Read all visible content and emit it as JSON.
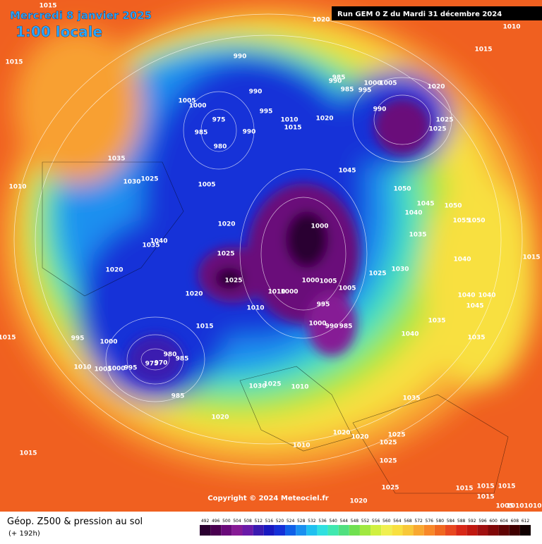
{
  "header": {
    "date": "Mercredi 8 janvier 2025",
    "time": "1:00 locale",
    "run": "Run GEM 0 Z du Mardi 31 décembre 2024"
  },
  "copyright": "Copyright © 2024 Meteociel.fr",
  "footer": {
    "title": "Géop. Z500 & pression au sol",
    "lead": "(+ 192h)"
  },
  "isobar_labels": [
    1015,
    1020,
    1010,
    1015,
    1015,
    990,
    985,
    990,
    1000,
    1005,
    985,
    995,
    1020,
    990,
    1005,
    1000,
    995,
    975,
    990,
    1025,
    1010,
    1020,
    990,
    985,
    1015,
    1025,
    980,
    1035,
    1045,
    1030,
    1025,
    1005,
    1010,
    1050,
    1045,
    1050,
    1040,
    1055,
    1050,
    1020,
    1000,
    1035,
    1040,
    1035,
    1015,
    1025,
    1040,
    1020,
    1025,
    1030,
    1025,
    1000,
    1005,
    1005,
    1020,
    1010,
    1000,
    1040,
    1040,
    995,
    1010,
    1045,
    1035,
    1000,
    990,
    985,
    1040,
    995,
    1000,
    1015,
    1015,
    1035,
    980,
    985,
    975,
    970,
    1010,
    1005,
    1000,
    995,
    1030,
    1025,
    1010,
    985,
    1035,
    1020,
    1015,
    1020,
    1020,
    1025,
    1025,
    1010,
    1025,
    1025,
    1015,
    1015,
    1015,
    1020,
    1015,
    1010,
    1010,
    1005
  ],
  "scale": {
    "values": [
      492,
      496,
      500,
      504,
      508,
      512,
      516,
      520,
      524,
      528,
      532,
      536,
      540,
      544,
      548,
      552,
      556,
      560,
      564,
      568,
      572,
      576,
      580,
      584,
      588,
      592,
      596,
      600,
      604,
      608,
      612
    ],
    "colors": [
      "#2a0030",
      "#4a0050",
      "#6a0a7a",
      "#861a95",
      "#6a1aa8",
      "#3a1ab0",
      "#1818c0",
      "#1430d8",
      "#1060e8",
      "#1a90f0",
      "#20c0f0",
      "#30e0e0",
      "#40e8b0",
      "#50e080",
      "#70e050",
      "#a0e840",
      "#d0f040",
      "#f0f050",
      "#f8e040",
      "#f8c838",
      "#f8a830",
      "#f88828",
      "#f06820",
      "#e84820",
      "#d82818",
      "#c01810",
      "#a01010",
      "#800808",
      "#600404",
      "#400000",
      "#100000"
    ]
  }
}
